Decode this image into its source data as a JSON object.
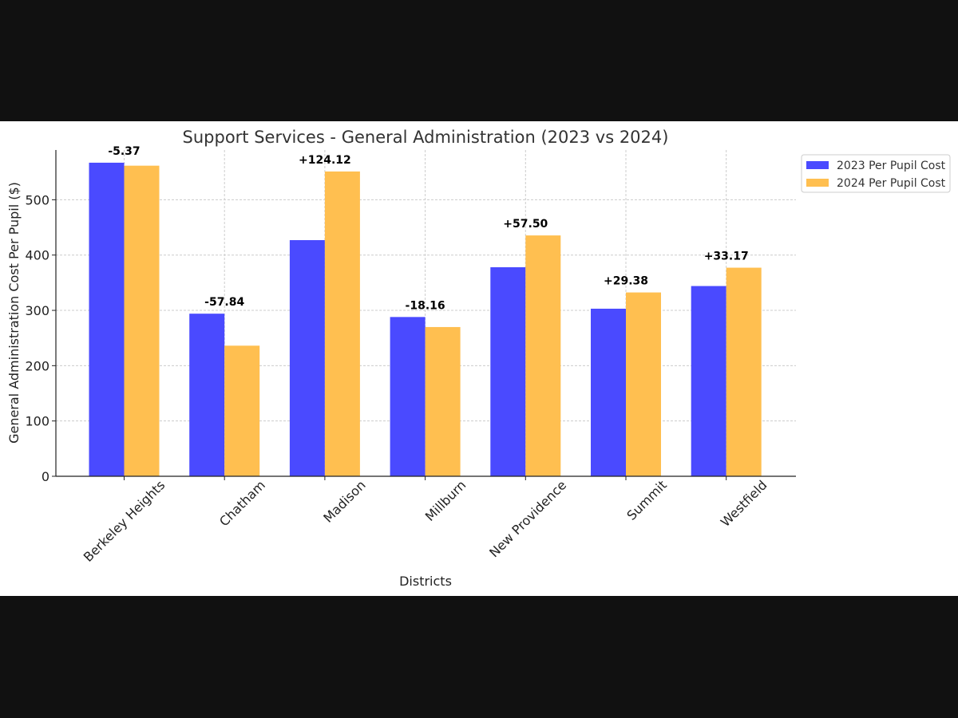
{
  "chart_data": {
    "type": "bar",
    "title": "Support Services - General Administration (2023 vs 2024)",
    "xlabel": "Districts",
    "ylabel": "General Administration Cost Per Pupil ($)",
    "ylim": [
      0,
      590
    ],
    "yticks": [
      0,
      100,
      200,
      300,
      400,
      500
    ],
    "grid": true,
    "legend_position": "top-right",
    "categories": [
      "Berkeley Heights",
      "Chatham",
      "Madison",
      "Millburn",
      "New Providence",
      "Summit",
      "Westfield"
    ],
    "series": [
      {
        "name": "2023 Per Pupil Cost",
        "color": "#4a4aff",
        "values": [
          567,
          294,
          427,
          288,
          378,
          303,
          344
        ]
      },
      {
        "name": "2024 Per Pupil Cost",
        "color": "#ffbf50",
        "values": [
          561.63,
          236.16,
          551.12,
          269.84,
          435.5,
          332.38,
          377.17
        ]
      }
    ],
    "annotations": [
      "-5.37",
      "-57.84",
      "+124.12",
      "-18.16",
      "+57.50",
      "+29.38",
      "+33.17"
    ]
  }
}
